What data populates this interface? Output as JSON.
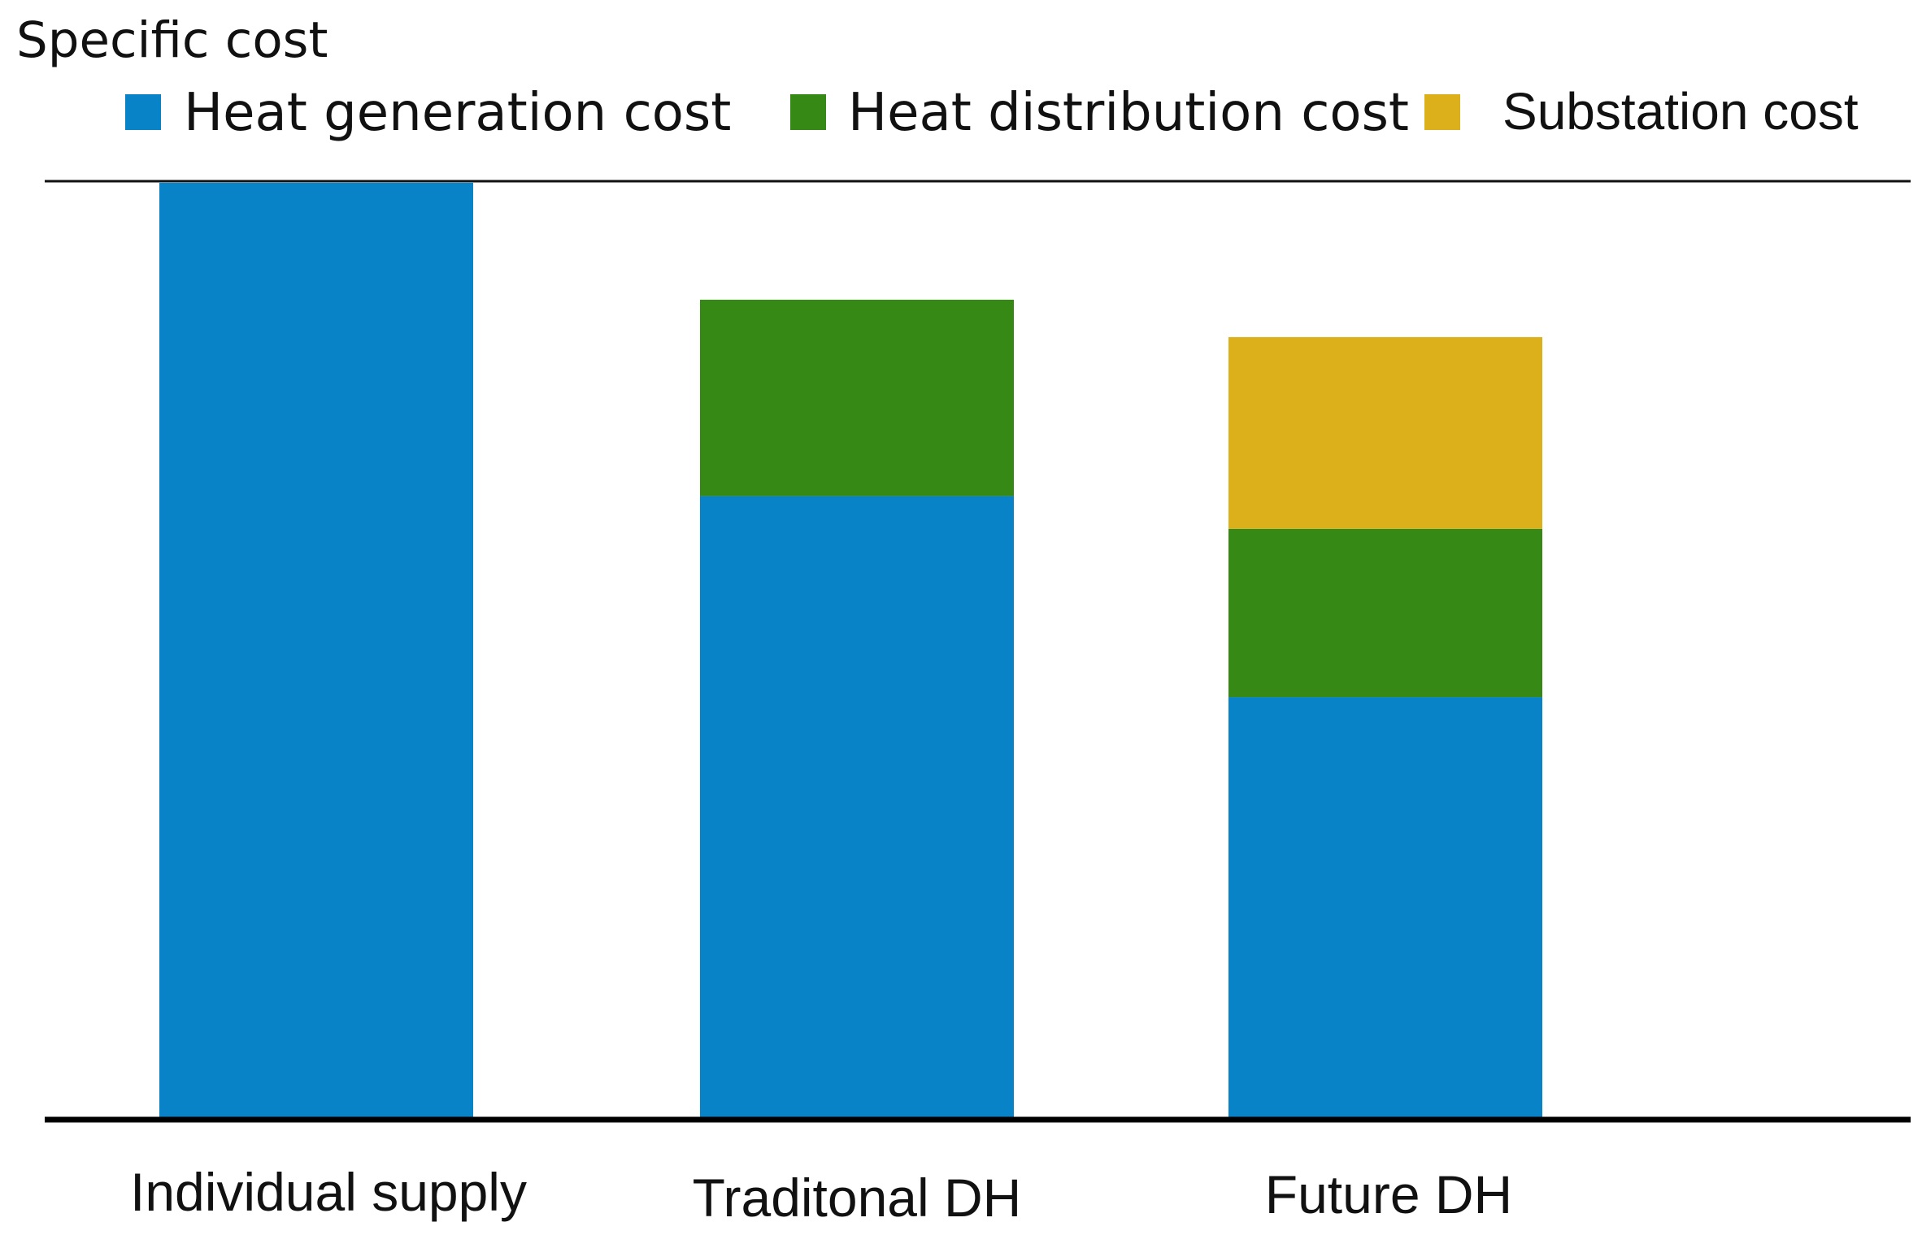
{
  "chart_data": {
    "type": "bar",
    "stacked": true,
    "ylabel": "Specific cost",
    "xlabel": "",
    "title": "",
    "categories": [
      "Individual supply",
      "Traditonal DH",
      "Future DH"
    ],
    "series": [
      {
        "name": "Heat generation cost",
        "color": "#0983c8",
        "values": [
          100,
          66.5,
          45
        ]
      },
      {
        "name": "Heat distribution cost",
        "color": "#368915",
        "values": [
          0,
          21,
          18
        ]
      },
      {
        "name": "Substation cost",
        "color": "#dcb01b",
        "values": [
          0,
          0,
          20.5
        ]
      }
    ],
    "ylim": [
      0,
      100
    ],
    "yticks": "none",
    "grid": false,
    "legend": "top"
  }
}
